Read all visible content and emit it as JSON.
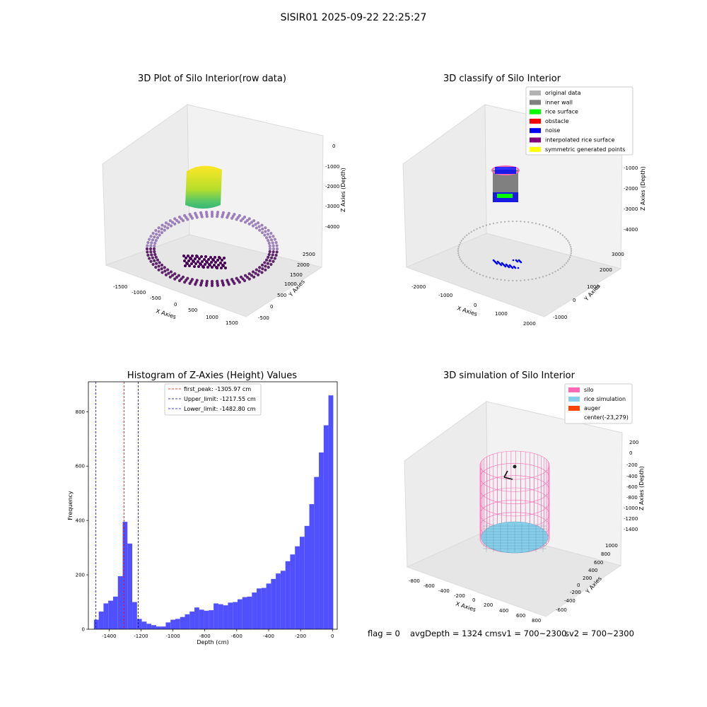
{
  "suptitle": "SISIR01 2025-09-22 22:25:27",
  "panels": {
    "tl_title": "3D Plot of Silo Interior(row data)",
    "tr_title": "3D classify of Silo Interior",
    "bl_title": "Histogram of Z-Axies (Height) Values",
    "br_title": "3D simulation of Silo Interior"
  },
  "footer": {
    "flag": "flag = 0",
    "avg": "avgDepth = 1324 cmsv1 = 700~2300",
    "sv2": "sv2 = 700~2300"
  },
  "chart_data": [
    {
      "type": "scatter",
      "title": "3D Plot of Silo Interior(row data)",
      "xlabel": "X Axies",
      "ylabel": "Y Axies",
      "zlabel": "Z Axies (Depth)",
      "x_ticks": [
        "-1500",
        "-1000",
        "-500",
        "0",
        "500",
        "1000",
        "1500"
      ],
      "y_ticks": [
        "-500",
        "0",
        "500",
        "1000",
        "1500",
        "2000",
        "2500"
      ],
      "z_ticks": [
        "0",
        "-1000",
        "-2000",
        "-3000",
        "-4000"
      ],
      "colormap": "viridis"
    },
    {
      "type": "scatter",
      "title": "3D classify of Silo Interior",
      "xlabel": "X Axies",
      "ylabel": "Y Axies",
      "zlabel": "Z Axies (Depth)",
      "x_ticks": [
        "-2000",
        "-1000",
        "0",
        "1000",
        "2000"
      ],
      "y_ticks": [
        "-1000",
        "0",
        "1000",
        "2000",
        "3000"
      ],
      "z_ticks": [
        "-1000",
        "-2000",
        "-3000",
        "-4000"
      ],
      "legend_position": "top-right",
      "legend": [
        {
          "label": "original data",
          "color": "#b3b3b3"
        },
        {
          "label": "inner wall",
          "color": "#808080"
        },
        {
          "label": "rice surface",
          "color": "#00ff00"
        },
        {
          "label": "obstacle",
          "color": "#ff0000"
        },
        {
          "label": "noise",
          "color": "#0000ff"
        },
        {
          "label": "interpolated rice surface",
          "color": "#800080"
        },
        {
          "label": "symmetric generated points",
          "color": "#ffff00"
        }
      ]
    },
    {
      "type": "bar",
      "title": "Histogram of Z-Axies (Height) Values",
      "xlabel": "Depth (cm)",
      "ylabel": "Frequency",
      "xlim": [
        -1530,
        30
      ],
      "ylim": [
        0,
        910
      ],
      "x_ticks": [
        -1400,
        -1200,
        -1000,
        -800,
        -600,
        -400,
        -200,
        0
      ],
      "y_ticks": [
        0,
        200,
        400,
        600,
        800
      ],
      "bar_color": "#5050ff",
      "bin_start": -1495,
      "bin_width": 30,
      "values": [
        35,
        65,
        95,
        105,
        120,
        195,
        395,
        315,
        100,
        38,
        28,
        20,
        15,
        10,
        10,
        25,
        35,
        38,
        45,
        55,
        65,
        80,
        72,
        68,
        70,
        95,
        92,
        88,
        98,
        100,
        110,
        118,
        120,
        135,
        150,
        152,
        168,
        185,
        205,
        215,
        250,
        275,
        305,
        340,
        380,
        460,
        560,
        650,
        750,
        860
      ],
      "legend_position": "top-center",
      "lines": [
        {
          "label": "first_peak: -1305.97 cm",
          "x": -1305.97,
          "color": "#ff0000"
        },
        {
          "label": "Upper_limit: -1217.55 cm",
          "x": -1217.55,
          "color": "#00008b"
        },
        {
          "label": "Lower_limit: -1482.80 cm",
          "x": -1482.8,
          "color": "#0000ff"
        }
      ]
    },
    {
      "type": "scatter",
      "title": "3D simulation of Silo Interior",
      "xlabel": "X Axies",
      "ylabel": "Y Axies",
      "zlabel": "Z Axies (Depth)",
      "x_ticks": [
        "-800",
        "-600",
        "-400",
        "-200",
        "0",
        "200",
        "400",
        "600",
        "800"
      ],
      "y_ticks": [
        "-600",
        "-400",
        "-200",
        "0",
        "200",
        "400",
        "600",
        "800",
        "1000"
      ],
      "z_ticks": [
        "200",
        "0",
        "-200",
        "-400",
        "-600",
        "-800",
        "-1000",
        "-1200",
        "-1400"
      ],
      "legend_position": "top-right",
      "legend": [
        {
          "label": "silo",
          "color": "#ff69b4"
        },
        {
          "label": "rice simulation",
          "color": "#87ceeb"
        },
        {
          "label": "auger",
          "color": "#ff4500"
        },
        {
          "label": "center(-23,279)",
          "color": ""
        }
      ]
    }
  ]
}
